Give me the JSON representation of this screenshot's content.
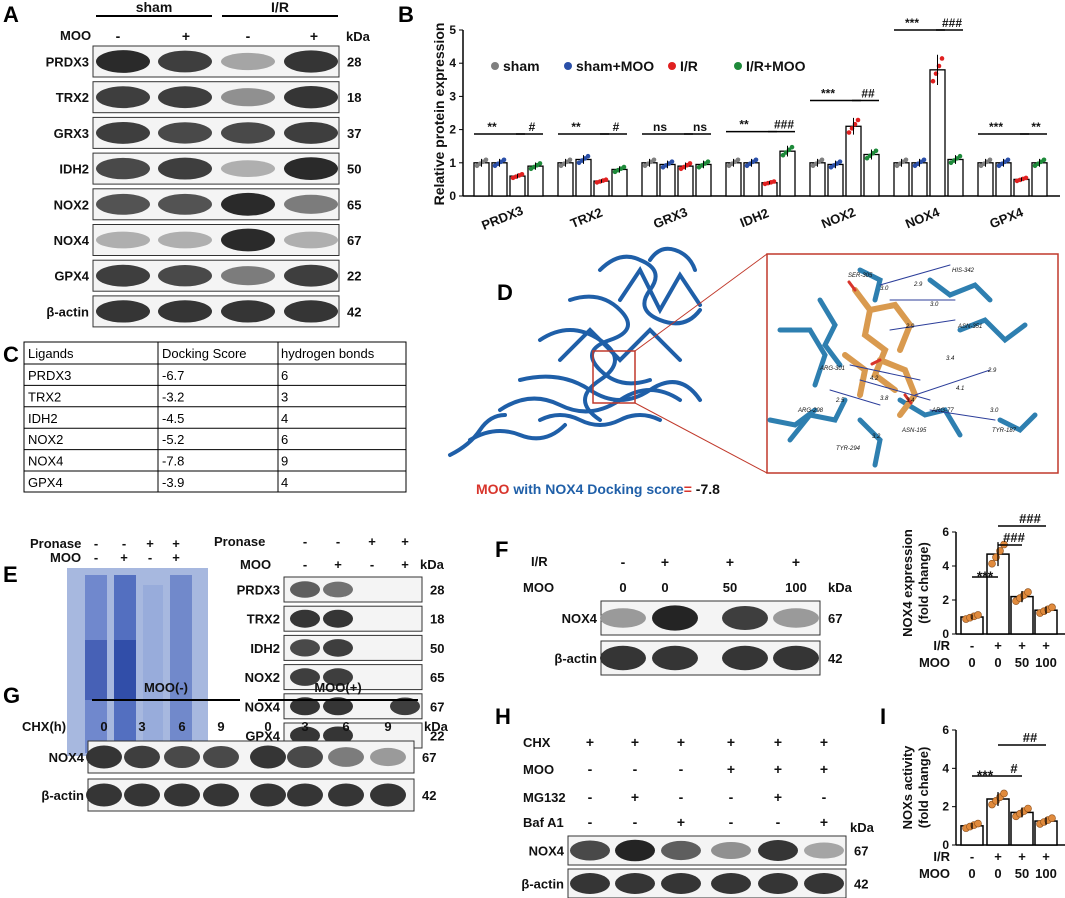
{
  "panels": {
    "A": "A",
    "B": "B",
    "C": "C",
    "D": "D",
    "E": "E",
    "F": "F",
    "G": "G",
    "H": "H",
    "I": "I"
  },
  "panelA": {
    "groups": [
      "sham",
      "I/R"
    ],
    "moo_label": "MOO",
    "moo_signs": [
      "-",
      "+",
      "-",
      "+"
    ],
    "kda_label": "kDa",
    "proteins": [
      {
        "name": "PRDX3",
        "kda": "28",
        "int": [
          0.95,
          0.85,
          0.35,
          0.9
        ]
      },
      {
        "name": "TRX2",
        "kda": "18",
        "int": [
          0.85,
          0.85,
          0.45,
          0.9
        ]
      },
      {
        "name": "GRX3",
        "kda": "37",
        "int": [
          0.85,
          0.8,
          0.8,
          0.85
        ]
      },
      {
        "name": "IDH2",
        "kda": "50",
        "int": [
          0.8,
          0.85,
          0.3,
          0.95
        ]
      },
      {
        "name": "NOX2",
        "kda": "65",
        "int": [
          0.75,
          0.75,
          0.95,
          0.55
        ]
      },
      {
        "name": "NOX4",
        "kda": "67",
        "int": [
          0.3,
          0.3,
          0.95,
          0.3
        ]
      },
      {
        "name": "GPX4",
        "kda": "22",
        "int": [
          0.85,
          0.8,
          0.55,
          0.85
        ]
      },
      {
        "name": "β-actin",
        "kda": "42",
        "int": [
          0.9,
          0.9,
          0.9,
          0.9
        ]
      }
    ]
  },
  "panelB": {
    "chart_data": {
      "type": "bar",
      "ylabel": "Relative protein expression",
      "ylim": [
        0,
        5
      ],
      "yticks": [
        "0",
        "1",
        "2",
        "3",
        "4",
        "5"
      ],
      "categories": [
        "PRDX3",
        "TRX2",
        "GRX3",
        "IDH2",
        "NOX2",
        "NOX4",
        "GPX4"
      ],
      "series": [
        {
          "name": "sham",
          "color": "#7f7f7f",
          "values": [
            1.0,
            1.0,
            1.0,
            1.0,
            1.0,
            1.0,
            1.0
          ]
        },
        {
          "name": "sham+MOO",
          "color": "#2a4fa8",
          "values": [
            1.0,
            1.1,
            0.95,
            1.0,
            0.95,
            1.0,
            1.0
          ]
        },
        {
          "name": "I/R",
          "color": "#e02020",
          "values": [
            0.6,
            0.45,
            0.9,
            0.4,
            2.1,
            3.8,
            0.5
          ]
        },
        {
          "name": "I/R+MOO",
          "color": "#1e8a3a",
          "values": [
            0.9,
            0.8,
            0.95,
            1.35,
            1.25,
            1.1,
            1.0
          ]
        }
      ],
      "significance": [
        [
          "**",
          "#"
        ],
        [
          "**",
          "#"
        ],
        [
          "ns",
          "ns"
        ],
        [
          "**",
          "###"
        ],
        [
          "***",
          "##"
        ],
        [
          "***",
          "###"
        ],
        [
          "***",
          "**"
        ]
      ]
    }
  },
  "panelC": {
    "headers": [
      "Ligands",
      "Docking Score",
      "hydrogen bonds"
    ],
    "rows": [
      [
        "PRDX3",
        "-6.7",
        "6"
      ],
      [
        "TRX2",
        "-3.2",
        "3"
      ],
      [
        "IDH2",
        "-4.5",
        "4"
      ],
      [
        "NOX2",
        "-5.2",
        "6"
      ],
      [
        "NOX4",
        "-7.8",
        "9"
      ],
      [
        "GPX4",
        "-3.9",
        "4"
      ]
    ]
  },
  "panelD": {
    "caption_moo": "MOO",
    "caption_with": " with NOX4 Docking score",
    "caption_eq": "=",
    "caption_val": " -7.8",
    "residues": [
      "SER-305",
      "HIS-342",
      "ASN-351",
      "ARG-301",
      "ARG-298",
      "ARG-77",
      "ASN-195",
      "TYR-187",
      "TYR-294"
    ],
    "distances": [
      "3.0",
      "2.9",
      "3.0",
      "2.9",
      "3.4",
      "4.1",
      "2.9",
      "3.0",
      "3.8",
      "3.2",
      "2.5",
      "4.2",
      "3.4"
    ]
  },
  "panelE": {
    "pronase_label": "Pronase",
    "moo_label": "MOO",
    "pronase_signs": [
      "-",
      "-",
      "+",
      "+"
    ],
    "moo_signs": [
      "-",
      "+",
      "-",
      "+"
    ],
    "kda_label": "kDa",
    "proteins": [
      {
        "name": "PRDX3",
        "kda": "28",
        "int": [
          0.7,
          0.6,
          0,
          0
        ]
      },
      {
        "name": "TRX2",
        "kda": "18",
        "int": [
          0.9,
          0.9,
          0,
          0
        ]
      },
      {
        "name": "IDH2",
        "kda": "50",
        "int": [
          0.8,
          0.85,
          0,
          0
        ]
      },
      {
        "name": "NOX2",
        "kda": "65",
        "int": [
          0.85,
          0.85,
          0,
          0
        ]
      },
      {
        "name": "NOX4",
        "kda": "67",
        "int": [
          0.9,
          0.9,
          0,
          0.85
        ]
      },
      {
        "name": "GPX4",
        "kda": "22",
        "int": [
          0.9,
          0.9,
          0,
          0
        ]
      }
    ]
  },
  "panelF": {
    "ir_label": "I/R",
    "moo_label": "MOO",
    "ir_signs": [
      "-",
      "+",
      "+",
      "+"
    ],
    "moo_doses": [
      "0",
      "0",
      "50",
      "100"
    ],
    "kda_label": "kDa",
    "proteins": [
      {
        "name": "NOX4",
        "kda": "67",
        "int": [
          0.4,
          0.98,
          0.85,
          0.4
        ]
      },
      {
        "name": "β-actin",
        "kda": "42",
        "int": [
          0.9,
          0.9,
          0.9,
          0.9
        ]
      }
    ]
  },
  "panelFbar": {
    "chart_data": {
      "type": "bar",
      "ylabel": "NOX4 expression (fold change)",
      "ylabel_lines": [
        "NOX4 expression",
        "(fold change)"
      ],
      "ylim": [
        0,
        6
      ],
      "yticks": [
        "0",
        "2",
        "4",
        "6"
      ],
      "ir_signs": [
        "-",
        "+",
        "+",
        "+"
      ],
      "moo_doses": [
        "0",
        "0",
        "50",
        "100"
      ],
      "row_labels": [
        "I/R",
        "MOO"
      ],
      "values": [
        1.0,
        4.7,
        2.2,
        1.4
      ],
      "significance": [
        "***",
        "###",
        "###"
      ]
    }
  },
  "panelG": {
    "groups": [
      "MOO(-)",
      "MOO(+)"
    ],
    "chx_label": "CHX(h)",
    "times": [
      "0",
      "3",
      "6",
      "9",
      "0",
      "3",
      "6",
      "9"
    ],
    "kda_label": "kDa",
    "proteins": [
      {
        "name": "NOX4",
        "kda": "67",
        "int": [
          0.9,
          0.85,
          0.8,
          0.8,
          0.9,
          0.8,
          0.55,
          0.4
        ]
      },
      {
        "name": "β-actin",
        "kda": "42",
        "int": [
          0.9,
          0.9,
          0.9,
          0.9,
          0.9,
          0.9,
          0.9,
          0.9
        ]
      }
    ]
  },
  "panelH": {
    "row_labels": [
      "CHX",
      "MOO",
      "MG132",
      "Baf A1"
    ],
    "signs": [
      [
        "+",
        "+",
        "+",
        "+",
        "+",
        "+"
      ],
      [
        "-",
        "-",
        "-",
        "+",
        "+",
        "+"
      ],
      [
        "-",
        "+",
        "-",
        "-",
        "+",
        "-"
      ],
      [
        "-",
        "-",
        "+",
        "-",
        "-",
        "+"
      ]
    ],
    "kda_label": "kDa",
    "proteins": [
      {
        "name": "NOX4",
        "kda": "67",
        "int": [
          0.8,
          0.98,
          0.7,
          0.45,
          0.9,
          0.35
        ]
      },
      {
        "name": "β-actin",
        "kda": "42",
        "int": [
          0.9,
          0.9,
          0.9,
          0.9,
          0.9,
          0.9
        ]
      }
    ]
  },
  "panelI": {
    "chart_data": {
      "type": "bar",
      "ylabel": "NOXs activity (fold change)",
      "ylabel_lines": [
        "NOXs activity",
        "(fold change)"
      ],
      "ylim": [
        0,
        6
      ],
      "yticks": [
        "0",
        "2",
        "4",
        "6"
      ],
      "ir_signs": [
        "-",
        "+",
        "+",
        "+"
      ],
      "moo_doses": [
        "0",
        "0",
        "50",
        "100"
      ],
      "row_labels": [
        "I/R",
        "MOO"
      ],
      "values": [
        1.0,
        2.4,
        1.7,
        1.25
      ],
      "significance": [
        "***",
        "#",
        "##"
      ]
    }
  }
}
